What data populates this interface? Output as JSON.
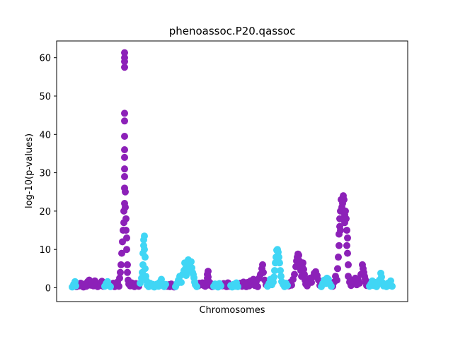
{
  "chart_data": {
    "type": "scatter",
    "title": "phenoassoc.P20.qassoc",
    "xlabel": "Chromosomes",
    "ylabel": "log-10(p-values)",
    "ylim": [
      -3.7,
      64
    ],
    "yticks": [
      0,
      10,
      20,
      30,
      40,
      50,
      60
    ],
    "grid": false,
    "x_ticks_shown": false,
    "colors": {
      "purple": "#8c21b8",
      "cyan": "#40d6f5"
    },
    "series": [
      {
        "color": "purple",
        "points": [
          [
            108,
            0.3
          ],
          [
            110,
            0.8
          ],
          [
            112,
            0.5
          ],
          [
            114,
            1.2
          ],
          [
            116,
            0.6
          ],
          [
            118,
            0.2
          ],
          [
            120,
            1
          ],
          [
            122,
            0.4
          ],
          [
            124,
            1.6
          ],
          [
            126,
            2
          ],
          [
            128,
            0.7
          ],
          [
            130,
            1.3
          ],
          [
            132,
            0.5
          ],
          [
            134,
            1.8
          ],
          [
            136,
            0.9
          ],
          [
            138,
            0.3
          ],
          [
            140,
            1.1
          ],
          [
            142,
            0.6
          ],
          [
            144,
            1.7
          ],
          [
            146,
            0.4
          ],
          [
            158,
            0.5
          ],
          [
            160,
            1.2
          ],
          [
            162,
            0.3
          ],
          [
            164,
            0.9
          ],
          [
            166,
            1.5
          ],
          [
            168,
            0.4
          ],
          [
            169,
            2.5
          ],
          [
            170,
            4
          ],
          [
            171,
            6
          ],
          [
            172,
            9
          ],
          [
            173,
            12
          ],
          [
            174,
            15
          ],
          [
            175,
            17
          ],
          [
            175,
            20
          ],
          [
            176,
            22
          ],
          [
            176,
            26
          ],
          [
            176,
            29
          ],
          [
            176,
            31
          ],
          [
            176,
            34
          ],
          [
            176,
            36
          ],
          [
            176,
            39.5
          ],
          [
            176,
            43.5
          ],
          [
            176,
            45.5
          ],
          [
            176,
            57.5
          ],
          [
            176,
            59
          ],
          [
            176,
            60
          ],
          [
            176,
            61.3
          ],
          [
            177,
            25
          ],
          [
            177,
            21
          ],
          [
            178,
            18
          ],
          [
            178,
            15
          ],
          [
            179,
            13
          ],
          [
            179,
            10
          ],
          [
            180,
            6
          ],
          [
            180,
            4
          ],
          [
            181,
            2
          ],
          [
            182,
            1
          ],
          [
            184,
            0.5
          ],
          [
            186,
            1.3
          ],
          [
            188,
            0.6
          ],
          [
            190,
            0.3
          ],
          [
            192,
            1.1
          ],
          [
            194,
            0.7
          ],
          [
            196,
            0.4
          ],
          [
            236,
            0.4
          ],
          [
            238,
            0.8
          ],
          [
            240,
            0.3
          ],
          [
            242,
            1
          ],
          [
            244,
            0.5
          ],
          [
            246,
            0.2
          ],
          [
            280,
            0.5
          ],
          [
            282,
            1.2
          ],
          [
            284,
            0.8
          ],
          [
            286,
            1.3
          ],
          [
            288,
            0.6
          ],
          [
            290,
            0.4
          ],
          [
            292,
            1.5
          ],
          [
            293,
            2.5
          ],
          [
            293,
            3.5
          ],
          [
            294,
            4.3
          ],
          [
            294,
            2.8
          ],
          [
            295,
            1.6
          ],
          [
            296,
            0.7
          ],
          [
            298,
            1.1
          ],
          [
            300,
            0.3
          ],
          [
            314,
            0.5
          ],
          [
            316,
            1.1
          ],
          [
            318,
            0.7
          ],
          [
            320,
            0.3
          ],
          [
            322,
            1.3
          ],
          [
            324,
            0.4
          ],
          [
            338,
            0.6
          ],
          [
            340,
            1.2
          ],
          [
            342,
            0.4
          ],
          [
            344,
            1.5
          ],
          [
            346,
            0.8
          ],
          [
            348,
            0.3
          ],
          [
            350,
            1.4
          ],
          [
            352,
            0.5
          ],
          [
            354,
            1.8
          ],
          [
            356,
            0.9
          ],
          [
            358,
            2.2
          ],
          [
            360,
            0.6
          ],
          [
            362,
            1.6
          ],
          [
            364,
            0.3
          ],
          [
            366,
            2.5
          ],
          [
            368,
            3.5
          ],
          [
            370,
            5
          ],
          [
            371,
            6
          ],
          [
            372,
            4
          ],
          [
            374,
            2
          ],
          [
            376,
            0.8
          ],
          [
            408,
            0.5
          ],
          [
            410,
            1.4
          ],
          [
            412,
            0.7
          ],
          [
            414,
            2.2
          ],
          [
            416,
            3.5
          ],
          [
            418,
            5.5
          ],
          [
            419,
            7
          ],
          [
            420,
            8
          ],
          [
            421,
            8.8
          ],
          [
            422,
            8.5
          ],
          [
            423,
            7
          ],
          [
            424,
            6
          ],
          [
            425,
            4.5
          ],
          [
            426,
            3
          ],
          [
            427,
            5.5
          ],
          [
            428,
            6.5
          ],
          [
            429,
            4.8
          ],
          [
            430,
            3.5
          ],
          [
            431,
            2
          ],
          [
            432,
            1
          ],
          [
            434,
            0.5
          ],
          [
            436,
            1.6
          ],
          [
            438,
            2.5
          ],
          [
            440,
            1.4
          ],
          [
            442,
            2.8
          ],
          [
            444,
            3.8
          ],
          [
            446,
            4.2
          ],
          [
            448,
            3.2
          ],
          [
            450,
            2
          ],
          [
            452,
            0.6
          ],
          [
            470,
            0.4
          ],
          [
            472,
            1.5
          ],
          [
            474,
            3
          ],
          [
            476,
            2
          ],
          [
            477,
            5
          ],
          [
            478,
            8
          ],
          [
            479,
            11
          ],
          [
            479,
            14
          ],
          [
            480,
            16
          ],
          [
            480,
            18
          ],
          [
            481,
            15
          ],
          [
            481,
            20
          ],
          [
            482,
            23
          ],
          [
            483,
            21
          ],
          [
            484,
            22
          ],
          [
            485,
            24
          ],
          [
            486,
            23
          ],
          [
            487,
            19
          ],
          [
            487,
            17
          ],
          [
            488,
            20
          ],
          [
            489,
            18
          ],
          [
            490,
            15
          ],
          [
            490,
            11
          ],
          [
            491,
            13
          ],
          [
            491,
            9
          ],
          [
            492,
            6
          ],
          [
            492,
            3
          ],
          [
            494,
            1.5
          ],
          [
            496,
            0.6
          ],
          [
            498,
            2
          ],
          [
            500,
            1.1
          ],
          [
            502,
            2.5
          ],
          [
            504,
            0.8
          ],
          [
            506,
            2
          ],
          [
            508,
            1.2
          ],
          [
            510,
            3.5
          ],
          [
            512,
            6
          ],
          [
            513,
            5
          ],
          [
            514,
            4
          ],
          [
            515,
            3
          ],
          [
            516,
            2.2
          ],
          [
            517,
            1.5
          ],
          [
            518,
            0.6
          ],
          [
            520,
            1.4
          ]
        ]
      },
      {
        "color": "cyan",
        "points": [
          [
            102,
            0.2
          ],
          [
            104,
            0.9
          ],
          [
            106,
            1.6
          ],
          [
            107,
            0.5
          ],
          [
            148,
            0.4
          ],
          [
            150,
            1.1
          ],
          [
            152,
            1.6
          ],
          [
            154,
            0.6
          ],
          [
            156,
            0.3
          ],
          [
            198,
            1.2
          ],
          [
            200,
            2.5
          ],
          [
            201,
            4
          ],
          [
            202,
            6
          ],
          [
            202,
            9
          ],
          [
            203,
            11
          ],
          [
            203,
            12.5
          ],
          [
            204,
            13.5
          ],
          [
            204,
            10
          ],
          [
            205,
            8
          ],
          [
            205,
            5
          ],
          [
            206,
            3
          ],
          [
            207,
            1.8
          ],
          [
            208,
            0.7
          ],
          [
            210,
            0.3
          ],
          [
            212,
            1.2
          ],
          [
            214,
            0.5
          ],
          [
            216,
            0.9
          ],
          [
            218,
            0.2
          ],
          [
            220,
            0.6
          ],
          [
            222,
            1
          ],
          [
            224,
            0.4
          ],
          [
            226,
            1.5
          ],
          [
            228,
            2.2
          ],
          [
            230,
            0.8
          ],
          [
            232,
            0.3
          ],
          [
            234,
            0.9
          ],
          [
            248,
            0.3
          ],
          [
            250,
            1.1
          ],
          [
            252,
            2
          ],
          [
            254,
            3
          ],
          [
            256,
            1.4
          ],
          [
            258,
            3.5
          ],
          [
            260,
            4.5
          ],
          [
            261,
            6.5
          ],
          [
            262,
            5
          ],
          [
            263,
            3.2
          ],
          [
            264,
            4
          ],
          [
            265,
            6
          ],
          [
            266,
            7.3
          ],
          [
            267,
            6.8
          ],
          [
            268,
            6
          ],
          [
            269,
            5.5
          ],
          [
            270,
            6.8
          ],
          [
            271,
            5.2
          ],
          [
            272,
            4
          ],
          [
            273,
            3.5
          ],
          [
            274,
            2.6
          ],
          [
            275,
            1.5
          ],
          [
            276,
            0.8
          ],
          [
            278,
            0.3
          ],
          [
            302,
            0.4
          ],
          [
            304,
            1
          ],
          [
            306,
            0.7
          ],
          [
            308,
            0.2
          ],
          [
            310,
            1.1
          ],
          [
            312,
            0.5
          ],
          [
            326,
            0.6
          ],
          [
            328,
            0.2
          ],
          [
            330,
            0.9
          ],
          [
            332,
            0.4
          ],
          [
            334,
            1.3
          ],
          [
            336,
            0.3
          ],
          [
            378,
            0.4
          ],
          [
            380,
            1.1
          ],
          [
            382,
            2.2
          ],
          [
            384,
            0.8
          ],
          [
            386,
            1.5
          ],
          [
            387,
            2.8
          ],
          [
            388,
            4.5
          ],
          [
            389,
            6.5
          ],
          [
            390,
            8
          ],
          [
            391,
            9.8
          ],
          [
            392,
            10
          ],
          [
            393,
            9.3
          ],
          [
            394,
            8
          ],
          [
            395,
            6.5
          ],
          [
            396,
            4.5
          ],
          [
            397,
            3
          ],
          [
            398,
            1.6
          ],
          [
            400,
            0.9
          ],
          [
            402,
            0.3
          ],
          [
            404,
            1.2
          ],
          [
            406,
            0.6
          ],
          [
            454,
            0.3
          ],
          [
            456,
            1.1
          ],
          [
            458,
            2
          ],
          [
            460,
            1.1
          ],
          [
            462,
            2.5
          ],
          [
            464,
            2.2
          ],
          [
            466,
            1
          ],
          [
            468,
            0.4
          ],
          [
            522,
            0.4
          ],
          [
            524,
            1
          ],
          [
            526,
            1.8
          ],
          [
            528,
            0.6
          ],
          [
            530,
            1.4
          ],
          [
            532,
            0.3
          ],
          [
            534,
            1
          ],
          [
            536,
            2
          ],
          [
            538,
            3.8
          ],
          [
            539,
            2.8
          ],
          [
            540,
            1.4
          ],
          [
            542,
            0.5
          ],
          [
            544,
            0.9
          ],
          [
            546,
            0.3
          ],
          [
            548,
            1.2
          ],
          [
            550,
            0.6
          ],
          [
            552,
            1.8
          ],
          [
            554,
            0.4
          ]
        ]
      }
    ]
  }
}
